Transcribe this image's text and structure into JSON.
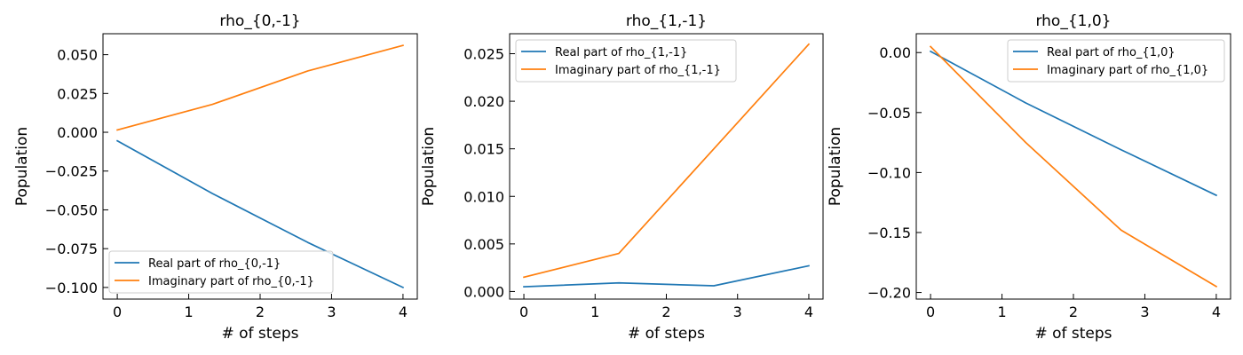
{
  "chart_data": [
    {
      "type": "line",
      "title": "rho_{0,-1}",
      "xlabel": "# of steps",
      "ylabel": "Population",
      "xlim": [
        -0.2,
        4.2
      ],
      "ylim": [
        -0.1075,
        0.0635
      ],
      "xticks": [
        0,
        1,
        2,
        3,
        4
      ],
      "xtick_labels": [
        "0",
        "1",
        "2",
        "3",
        "4"
      ],
      "yticks": [
        -0.1,
        -0.075,
        -0.05,
        -0.025,
        0.0,
        0.025,
        0.05
      ],
      "ytick_labels": [
        "−0.100",
        "−0.075",
        "−0.050",
        "−0.025",
        "0.000",
        "0.025",
        "0.050"
      ],
      "legend_position": "lower-left",
      "x": [
        0,
        1.333,
        2.667,
        4
      ],
      "series": [
        {
          "name": "Real part of rho_{0,-1}",
          "color": "#1f77b4",
          "values": [
            -0.0055,
            -0.0395,
            -0.071,
            -0.1
          ]
        },
        {
          "name": "Imaginary part of rho_{0,-1}",
          "color": "#ff7f0e",
          "values": [
            0.0015,
            0.018,
            0.0395,
            0.056
          ]
        }
      ]
    },
    {
      "type": "line",
      "title": "rho_{1,-1}",
      "xlabel": "# of steps",
      "ylabel": "Population",
      "xlim": [
        -0.2,
        4.2
      ],
      "ylim": [
        -0.0008,
        0.0271
      ],
      "xticks": [
        0,
        1,
        2,
        3,
        4
      ],
      "xtick_labels": [
        "0",
        "1",
        "2",
        "3",
        "4"
      ],
      "yticks": [
        0.0,
        0.005,
        0.01,
        0.015,
        0.02,
        0.025
      ],
      "ytick_labels": [
        "0.000",
        "0.005",
        "0.010",
        "0.015",
        "0.020",
        "0.025"
      ],
      "legend_position": "upper-left",
      "x": [
        0,
        1.333,
        2.667,
        4
      ],
      "series": [
        {
          "name": "Real part of rho_{1,-1}",
          "color": "#1f77b4",
          "values": [
            0.0005,
            0.0009,
            0.0006,
            0.0027
          ]
        },
        {
          "name": "Imaginary part of rho_{1,-1}",
          "color": "#ff7f0e",
          "values": [
            0.0015,
            0.004,
            0.015,
            0.026
          ]
        }
      ]
    },
    {
      "type": "line",
      "title": "rho_{1,0}",
      "xlabel": "# of steps",
      "ylabel": "Population",
      "xlim": [
        -0.2,
        4.2
      ],
      "ylim": [
        -0.2055,
        0.0157
      ],
      "xticks": [
        0,
        1,
        2,
        3,
        4
      ],
      "xtick_labels": [
        "0",
        "1",
        "2",
        "3",
        "4"
      ],
      "yticks": [
        -0.2,
        -0.15,
        -0.1,
        -0.05,
        0.0
      ],
      "ytick_labels": [
        "−0.20",
        "−0.15",
        "−0.10",
        "−0.05",
        "0.00"
      ],
      "legend_position": "upper-right",
      "x": [
        0,
        1.333,
        2.667,
        4
      ],
      "series": [
        {
          "name": "Real part of rho_{1,0}",
          "color": "#1f77b4",
          "values": [
            0.001,
            -0.042,
            -0.081,
            -0.119
          ]
        },
        {
          "name": "Imaginary part of rho_{1,0}",
          "color": "#ff7f0e",
          "values": [
            0.005,
            -0.075,
            -0.148,
            -0.195
          ]
        }
      ]
    }
  ]
}
